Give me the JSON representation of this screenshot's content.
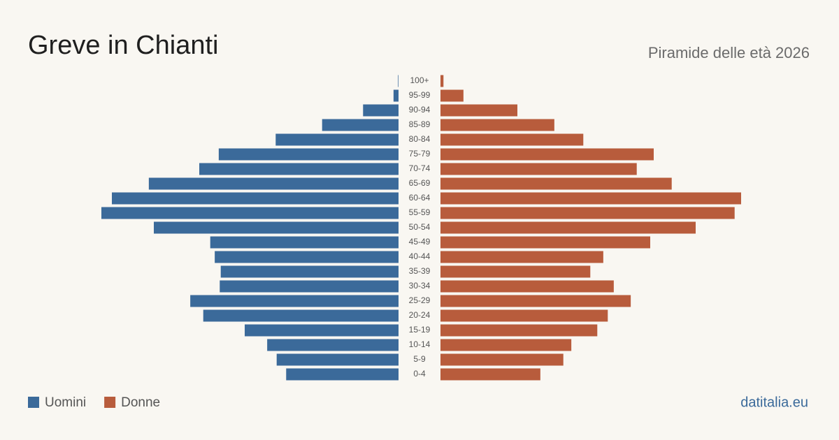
{
  "chart_data": {
    "type": "pyramid",
    "title": "Greve in Chianti",
    "subtitle": "Piramide delle età 2026",
    "categories": [
      "100+",
      "95-99",
      "90-94",
      "85-89",
      "80-84",
      "75-79",
      "70-74",
      "65-69",
      "60-64",
      "55-59",
      "50-54",
      "45-49",
      "40-44",
      "35-39",
      "30-34",
      "25-29",
      "20-24",
      "15-19",
      "10-14",
      "5-9",
      "0-4"
    ],
    "series": [
      {
        "name": "Uomini",
        "color": "#3b6a9a",
        "values": [
          1,
          10,
          71,
          153,
          246,
          360,
          399,
          500,
          574,
          595,
          490,
          377,
          368,
          356,
          358,
          417,
          391,
          308,
          263,
          244,
          225
        ]
      },
      {
        "name": "Donne",
        "color": "#b85c3c",
        "values": [
          6,
          46,
          154,
          228,
          286,
          427,
          393,
          463,
          602,
          589,
          511,
          420,
          326,
          300,
          347,
          381,
          335,
          314,
          262,
          246,
          200
        ]
      }
    ],
    "source": "datitalia.eu"
  }
}
